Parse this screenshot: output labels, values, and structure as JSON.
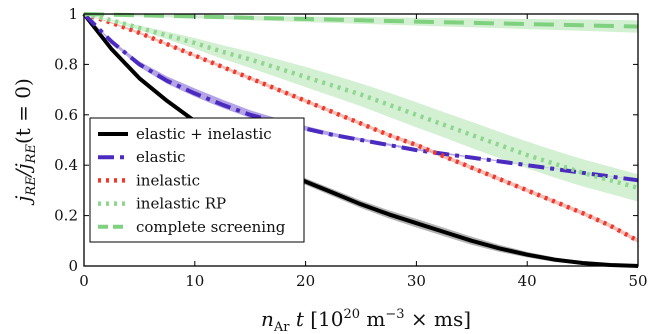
{
  "chart_data": {
    "type": "line",
    "xlabel": "n_Ar t [10^20 m^-3 × ms]",
    "xlabel_parts": {
      "var": "n",
      "var_sub": "Ar",
      "t": "t",
      "open": "[10",
      "exp1": "20",
      "unit": "m",
      "exp2": "−3",
      "close": "× ms]"
    },
    "ylabel": "j_RE / j_RE(t = 0)",
    "ylabel_parts": {
      "num": "j",
      "num_sub": "RE",
      "den": "/j",
      "den_sub": "RE",
      "tail": "(t = 0)"
    },
    "xlim": [
      0,
      50
    ],
    "ylim": [
      0,
      1
    ],
    "x_ticks": [
      0,
      10,
      20,
      30,
      40,
      50
    ],
    "x_tick_labels": [
      "0",
      "10",
      "20",
      "30",
      "40",
      "50"
    ],
    "y_ticks": [
      0,
      0.2,
      0.4,
      0.6,
      0.8,
      1
    ],
    "y_tick_labels": [
      "0",
      "0.2",
      "0.4",
      "0.6",
      "0.8",
      "1"
    ],
    "grid": false,
    "legend_position": "lower-left",
    "series": [
      {
        "name": "elastic + inelastic",
        "color": "#000000",
        "band_color": "#9a9a9a",
        "style": "solid",
        "x": [
          0,
          2.5,
          5,
          7.5,
          10,
          12.5,
          15,
          17.5,
          20,
          22.5,
          25,
          27.5,
          30,
          32.5,
          35,
          37.5,
          40,
          42.5,
          45,
          47.5,
          50
        ],
        "values": [
          1,
          0.86,
          0.745,
          0.655,
          0.575,
          0.505,
          0.44,
          0.385,
          0.335,
          0.29,
          0.245,
          0.205,
          0.17,
          0.135,
          0.1,
          0.07,
          0.045,
          0.025,
          0.012,
          0.004,
          0.0
        ],
        "band_lower": [
          1,
          0.858,
          0.742,
          0.65,
          0.568,
          0.496,
          0.43,
          0.373,
          0.322,
          0.276,
          0.23,
          0.189,
          0.153,
          0.118,
          0.084,
          0.056,
          0.034,
          0.016,
          0.006,
          0.001,
          0.0
        ],
        "band_upper": [
          1,
          0.862,
          0.748,
          0.66,
          0.582,
          0.514,
          0.45,
          0.397,
          0.348,
          0.304,
          0.26,
          0.221,
          0.187,
          0.152,
          0.116,
          0.084,
          0.056,
          0.034,
          0.018,
          0.007,
          0.002
        ]
      },
      {
        "name": "elastic",
        "color": "#4b2bbf",
        "band_color": "#9b86dd",
        "style": "dashdot",
        "x": [
          0,
          2.5,
          5,
          7.5,
          10,
          12.5,
          15,
          17.5,
          20,
          22.5,
          25,
          27.5,
          30,
          32.5,
          35,
          37.5,
          40,
          42.5,
          45,
          47.5,
          50
        ],
        "values": [
          1,
          0.89,
          0.8,
          0.735,
          0.685,
          0.64,
          0.6,
          0.57,
          0.545,
          0.52,
          0.5,
          0.48,
          0.46,
          0.445,
          0.43,
          0.415,
          0.4,
          0.385,
          0.37,
          0.355,
          0.34
        ],
        "band_lower": [
          1,
          0.885,
          0.79,
          0.723,
          0.672,
          0.627,
          0.588,
          0.56,
          0.537,
          0.514,
          0.496,
          0.477,
          0.458,
          0.443,
          0.429,
          0.414,
          0.399,
          0.384,
          0.369,
          0.354,
          0.339
        ],
        "band_upper": [
          1,
          0.895,
          0.812,
          0.752,
          0.705,
          0.66,
          0.618,
          0.585,
          0.556,
          0.529,
          0.507,
          0.486,
          0.466,
          0.45,
          0.434,
          0.419,
          0.404,
          0.389,
          0.373,
          0.358,
          0.343
        ]
      },
      {
        "name": "inelastic",
        "color": "#f0392b",
        "band_color": "#f0a8a0",
        "style": "dotted",
        "x": [
          0,
          2.5,
          5,
          7.5,
          10,
          12.5,
          15,
          17.5,
          20,
          22.5,
          25,
          27.5,
          30,
          32.5,
          35,
          37.5,
          40,
          42.5,
          45,
          47.5,
          50
        ],
        "values": [
          1,
          0.965,
          0.925,
          0.88,
          0.835,
          0.79,
          0.745,
          0.7,
          0.655,
          0.61,
          0.565,
          0.52,
          0.48,
          0.435,
          0.39,
          0.345,
          0.3,
          0.255,
          0.21,
          0.16,
          0.1
        ],
        "band_lower": [
          1,
          0.962,
          0.92,
          0.875,
          0.829,
          0.784,
          0.738,
          0.693,
          0.648,
          0.603,
          0.558,
          0.513,
          0.472,
          0.427,
          0.382,
          0.337,
          0.292,
          0.247,
          0.202,
          0.152,
          0.092
        ],
        "band_upper": [
          1,
          0.968,
          0.93,
          0.885,
          0.841,
          0.796,
          0.752,
          0.707,
          0.662,
          0.617,
          0.572,
          0.527,
          0.488,
          0.443,
          0.398,
          0.353,
          0.308,
          0.263,
          0.218,
          0.168,
          0.108
        ]
      },
      {
        "name": "inelastic RP",
        "color": "#8fd68f",
        "band_color": "#c4ebc4",
        "style": "dotted",
        "x": [
          0,
          2.5,
          5,
          7.5,
          10,
          12.5,
          15,
          17.5,
          20,
          22.5,
          25,
          27.5,
          30,
          32.5,
          35,
          37.5,
          40,
          42.5,
          45,
          47.5,
          50
        ],
        "values": [
          1,
          0.975,
          0.945,
          0.915,
          0.885,
          0.85,
          0.82,
          0.785,
          0.75,
          0.715,
          0.68,
          0.64,
          0.6,
          0.56,
          0.52,
          0.48,
          0.44,
          0.405,
          0.37,
          0.34,
          0.31
        ],
        "band_lower": [
          1,
          0.972,
          0.936,
          0.9,
          0.862,
          0.822,
          0.786,
          0.748,
          0.71,
          0.672,
          0.634,
          0.592,
          0.55,
          0.51,
          0.468,
          0.428,
          0.388,
          0.35,
          0.316,
          0.286,
          0.256
        ],
        "band_upper": [
          1,
          0.978,
          0.954,
          0.93,
          0.905,
          0.876,
          0.85,
          0.82,
          0.79,
          0.758,
          0.724,
          0.688,
          0.65,
          0.61,
          0.572,
          0.532,
          0.494,
          0.458,
          0.424,
          0.394,
          0.364
        ]
      },
      {
        "name": "complete screening",
        "color": "#7fd07f",
        "band_color": "#c4ebc4",
        "style": "dashed",
        "x": [
          0,
          5,
          10,
          15,
          20,
          25,
          30,
          35,
          40,
          45,
          50
        ],
        "values": [
          1,
          0.995,
          0.99,
          0.985,
          0.98,
          0.975,
          0.97,
          0.965,
          0.96,
          0.955,
          0.95
        ],
        "band_lower": [
          1,
          0.99,
          0.983,
          0.975,
          0.968,
          0.961,
          0.954,
          0.947,
          0.94,
          0.933,
          0.926
        ],
        "band_upper": [
          1,
          0.997,
          0.995,
          0.992,
          0.99,
          0.988,
          0.985,
          0.983,
          0.98,
          0.978,
          0.975
        ]
      }
    ]
  }
}
